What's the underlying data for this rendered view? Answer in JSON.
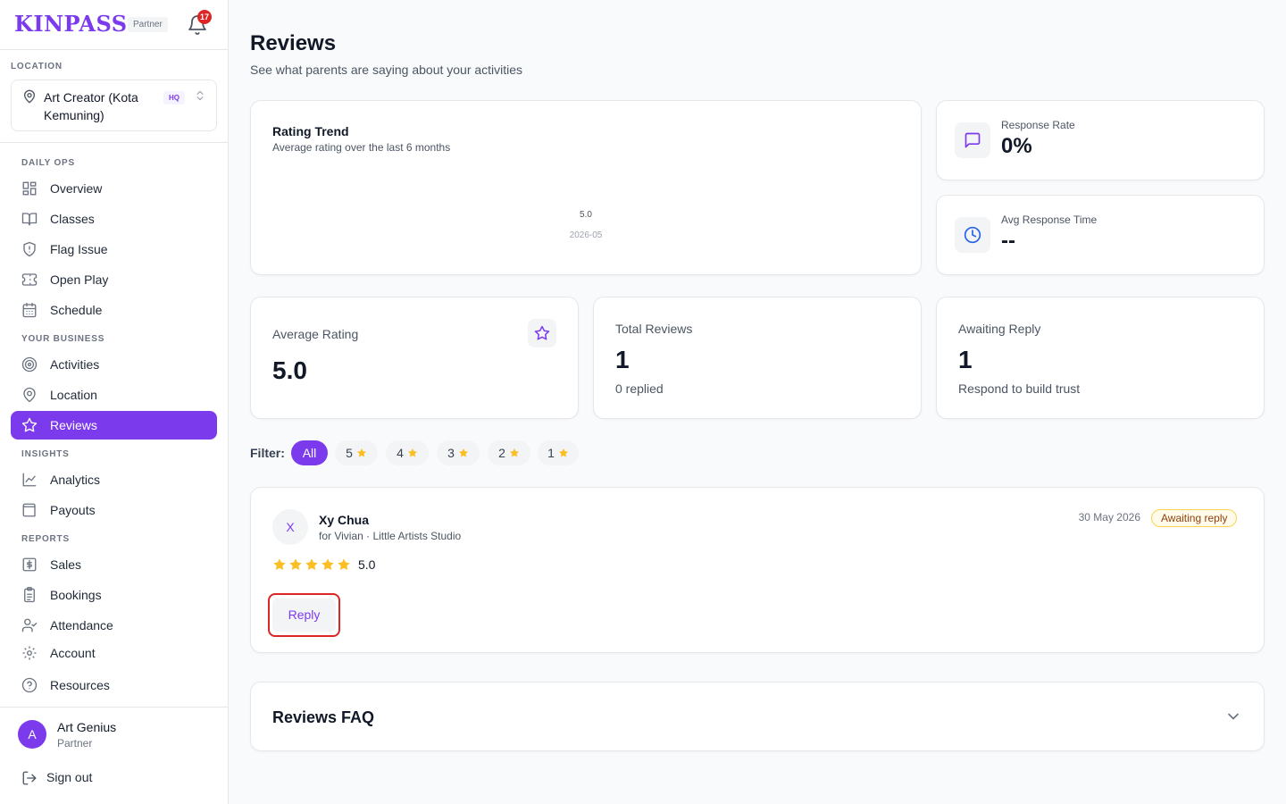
{
  "sidebar": {
    "logo": "KINPASS",
    "partner_badge": "Partner",
    "notification_count": "17",
    "location_label": "LOCATION",
    "location_name": "Art Creator (Kota Kemuning)",
    "location_badge": "HQ",
    "sections": {
      "daily_ops": "DAILY OPS",
      "your_business": "YOUR BUSINESS",
      "insights": "INSIGHTS",
      "reports": "REPORTS"
    },
    "nav": {
      "overview": "Overview",
      "classes": "Classes",
      "flag_issue": "Flag Issue",
      "open_play": "Open Play",
      "schedule": "Schedule",
      "activities": "Activities",
      "location": "Location",
      "reviews": "Reviews",
      "analytics": "Analytics",
      "payouts": "Payouts",
      "sales": "Sales",
      "bookings": "Bookings",
      "attendance": "Attendance",
      "account": "Account",
      "resources": "Resources"
    },
    "user": {
      "initial": "A",
      "name": "Art Genius",
      "role": "Partner"
    },
    "sign_out": "Sign out"
  },
  "page": {
    "title": "Reviews",
    "subtitle": "See what parents are saying about your activities"
  },
  "trend": {
    "title": "Rating Trend",
    "subtitle": "Average rating over the last 6 months"
  },
  "chart_data": {
    "type": "line",
    "x": [
      "2026-05"
    ],
    "values": [
      5.0
    ],
    "data_labels": [
      "5.0"
    ],
    "title": "Rating Trend",
    "subtitle": "Average rating over the last 6 months",
    "grid": false
  },
  "stats": {
    "response_rate": {
      "label": "Response Rate",
      "value": "0%"
    },
    "avg_response_time": {
      "label": "Avg Response Time",
      "value": "--"
    },
    "average_rating": {
      "label": "Average Rating",
      "value": "5.0"
    },
    "total_reviews": {
      "label": "Total Reviews",
      "value": "1",
      "note": "0 replied"
    },
    "awaiting_reply": {
      "label": "Awaiting Reply",
      "value": "1",
      "note": "Respond to build trust"
    }
  },
  "filter": {
    "label": "Filter:",
    "options": [
      "All",
      "5",
      "4",
      "3",
      "2",
      "1"
    ],
    "selected": "All"
  },
  "review": {
    "initial": "X",
    "name": "Xy Chua",
    "for_text": "for Vivian · Little Artists Studio",
    "date": "30 May 2026",
    "status": "Awaiting reply",
    "rating": 5,
    "score": "5.0",
    "reply_label": "Reply"
  },
  "faq": {
    "title": "Reviews FAQ"
  },
  "colors": {
    "brand": "#7c3aed",
    "star": "#fbbf24",
    "badge_alert": "#dc2626",
    "awaiting_border": "#fcd34d"
  }
}
